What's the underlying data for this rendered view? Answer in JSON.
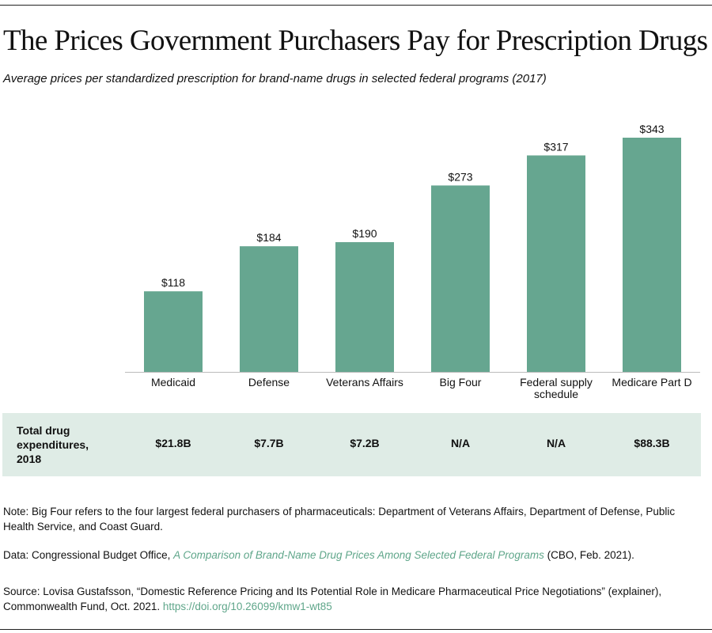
{
  "title": "The Prices Government Purchasers Pay for Prescription Drugs",
  "subtitle": "Average prices per standardized prescription for brand-name drugs in selected federal programs (2017)",
  "colors": {
    "bar": "#66a690",
    "band": "#dfece6",
    "link": "#5fa68a"
  },
  "chart_data": {
    "type": "bar",
    "categories": [
      "Medicaid",
      "Defense",
      "Veterans Affairs",
      "Big Four",
      "Federal supply schedule",
      "Medicare Part D"
    ],
    "values": [
      118,
      184,
      190,
      273,
      317,
      343
    ],
    "data_labels": [
      "$118",
      "$184",
      "$190",
      "$273",
      "$317",
      "$343"
    ],
    "ylim": [
      0,
      343
    ],
    "grid": false
  },
  "table": {
    "row_label": "Total drug expenditures, 2018",
    "values": [
      "$21.8B",
      "$7.7B",
      "$7.2B",
      "N/A",
      "N/A",
      "$88.3B"
    ]
  },
  "notes": {
    "note": "Note: Big Four refers to the four largest federal purchasers of pharmaceuticals: Department of Veterans Affairs, Department of Defense, Public Health Service, and Coast Guard.",
    "data_prefix": "Data: Congressional Budget Office, ",
    "data_link": "A Comparison of Brand-Name Drug Prices Among Selected Federal Programs",
    "data_suffix": " (CBO, Feb. 2021).",
    "source_text": "Source: Lovisa Gustafsson, “Domestic Reference Pricing and Its Potential Role in Medicare Pharmaceutical Price Negotiations” (explainer), Commonwealth Fund, Oct. 2021. ",
    "source_link": "https://doi.org/10.26099/kmw1-wt85"
  }
}
